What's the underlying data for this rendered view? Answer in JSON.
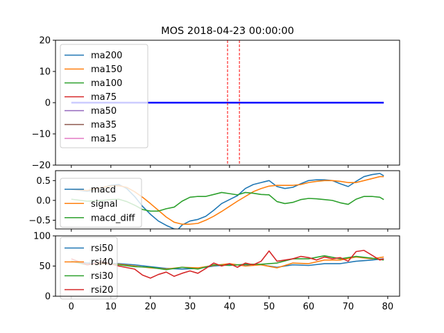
{
  "chart_data": {
    "title": "MOS 2018-04-23 00:00:00",
    "type": "line",
    "x_ticks": [
      0,
      10,
      20,
      30,
      40,
      50,
      60,
      70,
      80
    ],
    "panels": [
      {
        "id": "ma",
        "type": "line",
        "xlim": [
          -4,
          83
        ],
        "ylim": [
          -20,
          20
        ],
        "y_ticks": [
          -20,
          -10,
          0,
          10,
          20
        ],
        "legend_position": "upper-left",
        "vlines": [
          {
            "x": 39.5,
            "color": "#ff0000",
            "style": "dashed"
          },
          {
            "x": 42.5,
            "color": "#ff0000",
            "style": "dashed"
          }
        ],
        "hline": {
          "y": 0,
          "x_range": [
            0,
            79
          ],
          "color": "#0000ff"
        },
        "series": [
          {
            "name": "ma200",
            "color": "#1f77b4",
            "values": []
          },
          {
            "name": "ma150",
            "color": "#ff7f0e",
            "values": []
          },
          {
            "name": "ma100",
            "color": "#2ca02c",
            "values": []
          },
          {
            "name": "ma75",
            "color": "#d62728",
            "values": []
          },
          {
            "name": "ma50",
            "color": "#9467bd",
            "values": []
          },
          {
            "name": "ma35",
            "color": "#8c564b",
            "values": []
          },
          {
            "name": "ma15",
            "color": "#e377c2",
            "values": []
          }
        ]
      },
      {
        "id": "macd",
        "type": "line",
        "xlim": [
          -4,
          83
        ],
        "ylim": [
          -0.72,
          0.75
        ],
        "y_ticks": [
          -0.5,
          0.0,
          0.5
        ],
        "y_tick_labels": [
          "−0.5",
          "0.0",
          "0.5"
        ],
        "legend_position": "lower-left",
        "series": [
          {
            "name": "macd",
            "color": "#1f77b4",
            "points": [
              [
                0,
                0.28
              ],
              [
                4,
                0.23
              ],
              [
                8,
                0.32
              ],
              [
                10,
                0.38
              ],
              [
                12,
                0.4
              ],
              [
                14,
                0.3
              ],
              [
                16,
                0.1
              ],
              [
                18,
                -0.15
              ],
              [
                20,
                -0.35
              ],
              [
                22,
                -0.52
              ],
              [
                24,
                -0.63
              ],
              [
                26,
                -0.72
              ],
              [
                27,
                -0.73
              ],
              [
                28,
                -0.62
              ],
              [
                30,
                -0.52
              ],
              [
                32,
                -0.48
              ],
              [
                34,
                -0.4
              ],
              [
                36,
                -0.25
              ],
              [
                38,
                -0.08
              ],
              [
                40,
                0.02
              ],
              [
                42,
                0.12
              ],
              [
                44,
                0.3
              ],
              [
                46,
                0.4
              ],
              [
                48,
                0.45
              ],
              [
                50,
                0.5
              ],
              [
                52,
                0.35
              ],
              [
                54,
                0.3
              ],
              [
                56,
                0.33
              ],
              [
                58,
                0.42
              ],
              [
                60,
                0.5
              ],
              [
                62,
                0.52
              ],
              [
                64,
                0.52
              ],
              [
                66,
                0.5
              ],
              [
                68,
                0.42
              ],
              [
                70,
                0.35
              ],
              [
                72,
                0.48
              ],
              [
                74,
                0.6
              ],
              [
                76,
                0.65
              ],
              [
                78,
                0.68
              ],
              [
                79,
                0.62
              ]
            ]
          },
          {
            "name": "signal",
            "color": "#ff7f0e",
            "points": [
              [
                0,
                0.28
              ],
              [
                4,
                0.25
              ],
              [
                8,
                0.33
              ],
              [
                10,
                0.36
              ],
              [
                12,
                0.37
              ],
              [
                14,
                0.33
              ],
              [
                16,
                0.22
              ],
              [
                18,
                0.08
              ],
              [
                20,
                -0.08
              ],
              [
                22,
                -0.25
              ],
              [
                24,
                -0.42
              ],
              [
                26,
                -0.55
              ],
              [
                28,
                -0.6
              ],
              [
                30,
                -0.6
              ],
              [
                32,
                -0.58
              ],
              [
                34,
                -0.5
              ],
              [
                36,
                -0.4
              ],
              [
                38,
                -0.28
              ],
              [
                40,
                -0.15
              ],
              [
                42,
                -0.02
              ],
              [
                44,
                0.1
              ],
              [
                46,
                0.22
              ],
              [
                48,
                0.3
              ],
              [
                50,
                0.36
              ],
              [
                52,
                0.38
              ],
              [
                54,
                0.38
              ],
              [
                56,
                0.38
              ],
              [
                58,
                0.4
              ],
              [
                60,
                0.45
              ],
              [
                62,
                0.48
              ],
              [
                64,
                0.5
              ],
              [
                66,
                0.5
              ],
              [
                68,
                0.48
              ],
              [
                70,
                0.45
              ],
              [
                72,
                0.45
              ],
              [
                74,
                0.5
              ],
              [
                76,
                0.55
              ],
              [
                78,
                0.6
              ],
              [
                79,
                0.6
              ]
            ]
          },
          {
            "name": "macd_diff",
            "color": "#2ca02c",
            "points": [
              [
                0,
                0.03
              ],
              [
                4,
                -0.02
              ],
              [
                8,
                0.0
              ],
              [
                10,
                0.02
              ],
              [
                12,
                0.03
              ],
              [
                14,
                -0.03
              ],
              [
                16,
                -0.12
              ],
              [
                18,
                -0.23
              ],
              [
                20,
                -0.27
              ],
              [
                22,
                -0.27
              ],
              [
                24,
                -0.21
              ],
              [
                26,
                -0.17
              ],
              [
                28,
                -0.02
              ],
              [
                30,
                0.08
              ],
              [
                32,
                0.1
              ],
              [
                34,
                0.1
              ],
              [
                36,
                0.15
              ],
              [
                38,
                0.2
              ],
              [
                40,
                0.17
              ],
              [
                42,
                0.14
              ],
              [
                44,
                0.2
              ],
              [
                46,
                0.18
              ],
              [
                48,
                0.15
              ],
              [
                50,
                0.14
              ],
              [
                52,
                -0.03
              ],
              [
                54,
                -0.08
              ],
              [
                56,
                -0.05
              ],
              [
                58,
                0.02
              ],
              [
                60,
                0.05
              ],
              [
                62,
                0.04
              ],
              [
                64,
                0.02
              ],
              [
                66,
                0.0
              ],
              [
                68,
                -0.06
              ],
              [
                70,
                -0.1
              ],
              [
                72,
                0.03
              ],
              [
                74,
                0.1
              ],
              [
                76,
                0.1
              ],
              [
                78,
                0.08
              ],
              [
                79,
                0.02
              ]
            ]
          }
        ]
      },
      {
        "id": "rsi",
        "type": "line",
        "xlim": [
          -4,
          83
        ],
        "ylim": [
          0,
          100
        ],
        "y_ticks": [
          0,
          50,
          100
        ],
        "legend_position": "upper-left",
        "series": [
          {
            "name": "rsi50",
            "color": "#1f77b4",
            "points": [
              [
                0,
                58
              ],
              [
                4,
                55
              ],
              [
                8,
                55
              ],
              [
                12,
                54
              ],
              [
                16,
                52
              ],
              [
                20,
                49
              ],
              [
                24,
                46
              ],
              [
                28,
                45
              ],
              [
                32,
                46
              ],
              [
                36,
                50
              ],
              [
                40,
                52
              ],
              [
                44,
                52
              ],
              [
                48,
                52
              ],
              [
                52,
                48
              ],
              [
                56,
                52
              ],
              [
                60,
                51
              ],
              [
                64,
                54
              ],
              [
                68,
                54
              ],
              [
                72,
                58
              ],
              [
                76,
                60
              ],
              [
                79,
                62
              ]
            ]
          },
          {
            "name": "rsi40",
            "color": "#ff7f0e",
            "points": [
              [
                0,
                58
              ],
              [
                4,
                53
              ],
              [
                8,
                54
              ],
              [
                12,
                53
              ],
              [
                16,
                50
              ],
              [
                20,
                47
              ],
              [
                24,
                45
              ],
              [
                28,
                48
              ],
              [
                32,
                47
              ],
              [
                36,
                51
              ],
              [
                40,
                54
              ],
              [
                44,
                50
              ],
              [
                48,
                52
              ],
              [
                52,
                47
              ],
              [
                56,
                55
              ],
              [
                60,
                54
              ],
              [
                64,
                60
              ],
              [
                68,
                60
              ],
              [
                72,
                65
              ],
              [
                76,
                62
              ],
              [
                79,
                65
              ]
            ]
          },
          {
            "name": "rsi30",
            "color": "#2ca02c",
            "points": [
              [
                0,
                58
              ],
              [
                4,
                52
              ],
              [
                8,
                56
              ],
              [
                12,
                52
              ],
              [
                16,
                49
              ],
              [
                20,
                48
              ],
              [
                24,
                44
              ],
              [
                28,
                48
              ],
              [
                32,
                45
              ],
              [
                36,
                52
              ],
              [
                40,
                51
              ],
              [
                44,
                53
              ],
              [
                48,
                53
              ],
              [
                52,
                55
              ],
              [
                56,
                62
              ],
              [
                60,
                62
              ],
              [
                64,
                67
              ],
              [
                68,
                62
              ],
              [
                72,
                66
              ],
              [
                76,
                63
              ],
              [
                79,
                60
              ]
            ]
          },
          {
            "name": "rsi20",
            "color": "#d62728",
            "points": [
              [
                0,
                62
              ],
              [
                4,
                52
              ],
              [
                8,
                57
              ],
              [
                12,
                50
              ],
              [
                16,
                45
              ],
              [
                18,
                35
              ],
              [
                20,
                30
              ],
              [
                22,
                36
              ],
              [
                24,
                40
              ],
              [
                26,
                33
              ],
              [
                28,
                38
              ],
              [
                30,
                42
              ],
              [
                32,
                38
              ],
              [
                34,
                46
              ],
              [
                36,
                55
              ],
              [
                38,
                50
              ],
              [
                40,
                54
              ],
              [
                42,
                48
              ],
              [
                44,
                55
              ],
              [
                46,
                52
              ],
              [
                48,
                58
              ],
              [
                50,
                75
              ],
              [
                52,
                58
              ],
              [
                54,
                60
              ],
              [
                56,
                62
              ],
              [
                58,
                66
              ],
              [
                60,
                64
              ],
              [
                62,
                60
              ],
              [
                64,
                65
              ],
              [
                66,
                62
              ],
              [
                68,
                64
              ],
              [
                70,
                58
              ],
              [
                72,
                74
              ],
              [
                74,
                76
              ],
              [
                76,
                68
              ],
              [
                78,
                60
              ],
              [
                79,
                62
              ]
            ]
          }
        ]
      }
    ]
  }
}
